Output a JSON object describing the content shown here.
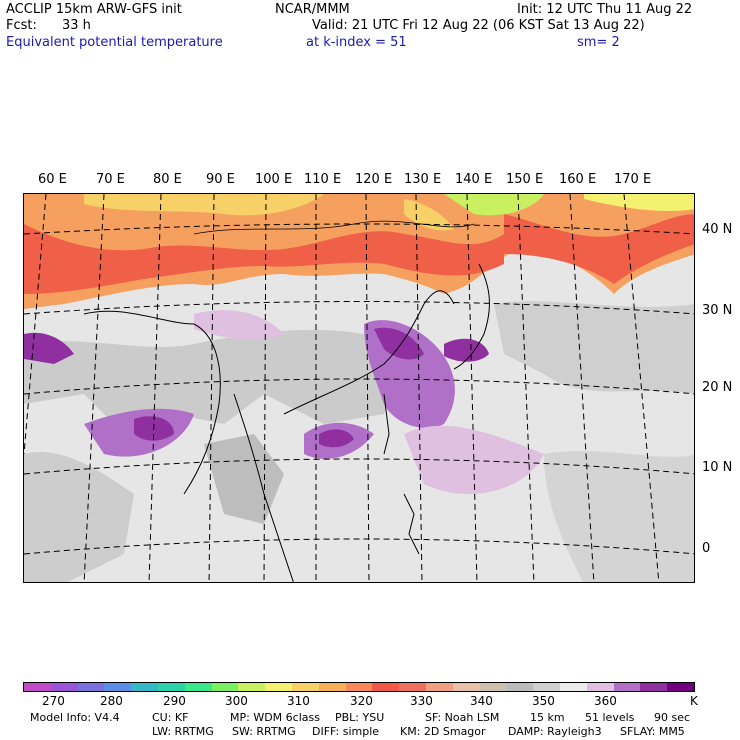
{
  "header": {
    "model_line": "ACCLIP 15km ARW-GFS init",
    "org": "NCAR/MMM",
    "init": "Init: 12 UTC Thu 11 Aug 22",
    "fcst_label": "Fcst:",
    "fcst_value": "33 h",
    "valid": "Valid: 21 UTC Fri 12 Aug 22 (06 KST Sat 13 Aug 22)",
    "field": "Equivalent potential temperature",
    "level": "at k-index =  51",
    "smoothing": "sm= 2"
  },
  "map": {
    "longitude_labels": [
      "60 E",
      "70 E",
      "80 E",
      "90 E",
      "100 E",
      "110 E",
      "120 E",
      "130 E",
      "140 E",
      "150 E",
      "160 E",
      "170 E"
    ],
    "latitude_labels": [
      "40 N",
      "30 N",
      "20 N",
      "10 N",
      "0"
    ]
  },
  "colorbar": {
    "colors": [
      "#c04cc8",
      "#9a55d8",
      "#7a70e0",
      "#5a8ee8",
      "#35b8c8",
      "#2fd0a8",
      "#3ae88a",
      "#7af060",
      "#c8f060",
      "#f4f070",
      "#f8d068",
      "#f8b058",
      "#f88858",
      "#f05848",
      "#f07060",
      "#f0a080",
      "#e8c0a8",
      "#d0c0b0",
      "#bcbcbc",
      "#d0d0d0",
      "#ececec",
      "#e0c0e0",
      "#b070c8",
      "#9030a0",
      "#700080"
    ],
    "labels": [
      "270",
      "280",
      "290",
      "300",
      "310",
      "320",
      "330",
      "340",
      "350",
      "360"
    ],
    "unit": "K"
  },
  "footer": {
    "line1": [
      "Model Info: V4.4",
      "CU: KF",
      "MP: WDM 6class",
      "PBL: YSU",
      "SF: Noah LSM",
      "15 km",
      "51 levels",
      "90 sec"
    ],
    "line2": [
      "LW: RRTMG",
      "SW: RRTMG",
      "DIFF: simple",
      "KM: 2D Smagor",
      "DAMP: Rayleigh3",
      "SFLAY: MM5"
    ]
  }
}
